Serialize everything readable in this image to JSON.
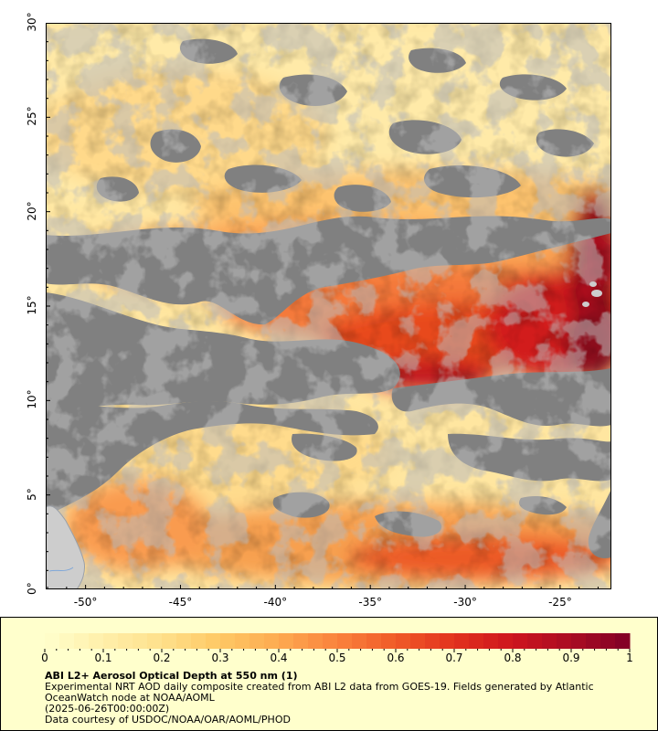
{
  "map": {
    "lat_ticks": [
      "30°",
      "25°",
      "20°",
      "15°",
      "10°",
      "5°",
      "0°"
    ],
    "lon_ticks": [
      "-50°",
      "-45°",
      "-40°",
      "-35°",
      "-30°",
      "-25°"
    ],
    "lat_values": [
      30,
      25,
      20,
      15,
      10,
      5,
      0
    ],
    "lon_values": [
      -50,
      -45,
      -40,
      -35,
      -30,
      -25
    ],
    "lon_range": [
      -52.1,
      -22.3
    ],
    "lat_range": [
      0,
      30
    ],
    "colors": {
      "no_data": "#808080",
      "land": "#cdcdcd",
      "low": "#ffe9a8",
      "mid": "#fdb463",
      "high": "#e8491e",
      "max": "#8b0a1e"
    }
  },
  "legend": {
    "tick_labels": [
      "0",
      "0.1",
      "0.2",
      "0.3",
      "0.4",
      "0.5",
      "0.6",
      "0.7",
      "0.8",
      "0.9",
      "1"
    ],
    "tick_values": [
      0,
      0.1,
      0.2,
      0.3,
      0.4,
      0.5,
      0.6,
      0.7,
      0.8,
      0.9,
      1
    ],
    "title": "ABI L2+ Aerosol Optical Depth at 550 nm (1)",
    "line1": "Experimental NRT AOD daily composite created from ABI L2 data from GOES-19. Fields generated by Atlantic",
    "line2": "OceanWatch node at NOAA/AOML",
    "line3": "(2025-06-26T00:00:00Z)",
    "line4": "Data courtesy of USDOC/NOAA/OAR/AOML/PHOD"
  }
}
